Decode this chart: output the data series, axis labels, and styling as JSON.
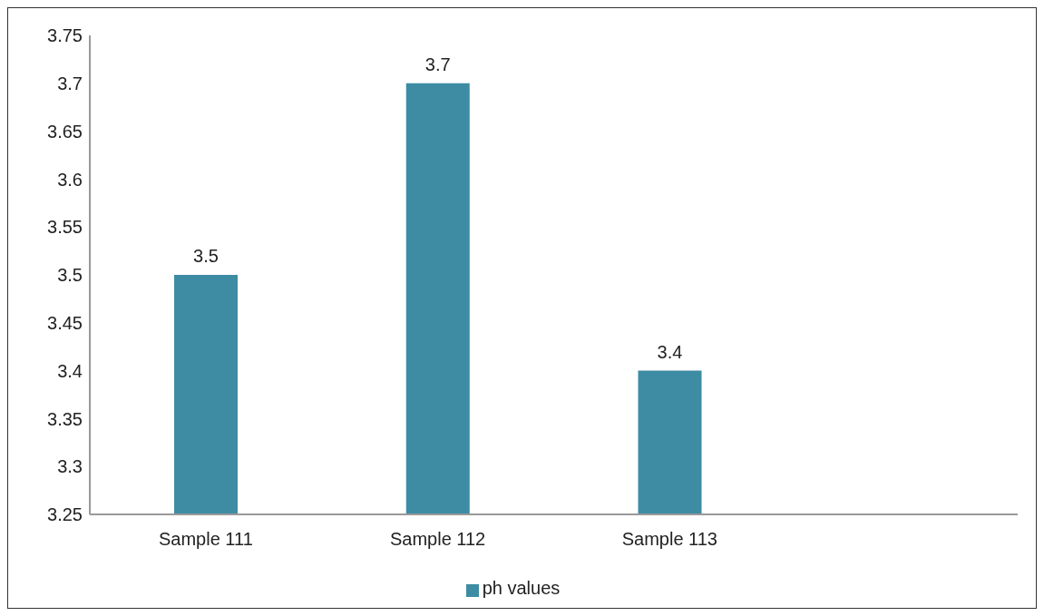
{
  "chart_data": {
    "type": "bar",
    "categories": [
      "Sample 111",
      "Sample 112",
      "Sample 113",
      null
    ],
    "series": [
      {
        "name": "ph values",
        "color": "#3d8ca3",
        "values": [
          3.5,
          3.7,
          3.4,
          null
        ]
      }
    ],
    "ylim": [
      3.25,
      3.75
    ],
    "yticks": [
      3.25,
      3.3,
      3.35,
      3.4,
      3.45,
      3.5,
      3.55,
      3.6,
      3.65,
      3.7,
      3.75
    ],
    "grid": false,
    "legend": "bottom",
    "data_labels": true
  }
}
